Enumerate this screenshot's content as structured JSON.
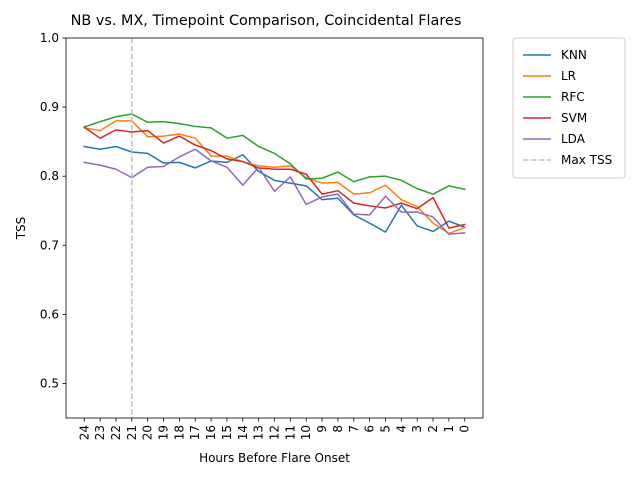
{
  "chart_data": {
    "type": "line",
    "title": "NB vs. MX, Timepoint Comparison, Coincidental Flares",
    "xlabel": "Hours Before Flare Onset",
    "ylabel": "TSS",
    "x": [
      24,
      23,
      22,
      21,
      20,
      19,
      18,
      17,
      16,
      15,
      14,
      13,
      12,
      11,
      10,
      9,
      8,
      7,
      6,
      5,
      4,
      3,
      2,
      1,
      0
    ],
    "ylim": [
      0.45,
      1.0
    ],
    "yticks": [
      0.5,
      0.6,
      0.7,
      0.8,
      0.9,
      1.0
    ],
    "ytick_labels": [
      "0.5",
      "0.6",
      "0.7",
      "0.8",
      "0.9",
      "1.0"
    ],
    "grid": false,
    "legend_position": "outside-right-top",
    "series": [
      {
        "name": "KNN",
        "color": "#1f77b4",
        "values": [
          0.843,
          0.839,
          0.843,
          0.835,
          0.833,
          0.819,
          0.82,
          0.812,
          0.822,
          0.82,
          0.831,
          0.807,
          0.794,
          0.79,
          0.786,
          0.766,
          0.768,
          0.744,
          0.732,
          0.719,
          0.758,
          0.728,
          0.72,
          0.735,
          0.726
        ]
      },
      {
        "name": "LR",
        "color": "#ff7f0e",
        "values": [
          0.87,
          0.866,
          0.88,
          0.88,
          0.857,
          0.858,
          0.861,
          0.855,
          0.829,
          0.829,
          0.821,
          0.815,
          0.813,
          0.815,
          0.798,
          0.79,
          0.791,
          0.774,
          0.776,
          0.787,
          0.766,
          0.756,
          0.732,
          0.717,
          0.726
        ]
      },
      {
        "name": "RFC",
        "color": "#2ca02c",
        "values": [
          0.871,
          0.879,
          0.886,
          0.89,
          0.878,
          0.879,
          0.876,
          0.872,
          0.87,
          0.855,
          0.859,
          0.843,
          0.833,
          0.818,
          0.796,
          0.797,
          0.806,
          0.792,
          0.799,
          0.8,
          0.794,
          0.782,
          0.774,
          0.786,
          0.781
        ]
      },
      {
        "name": "SVM",
        "color": "#d62728",
        "values": [
          0.871,
          0.855,
          0.867,
          0.864,
          0.866,
          0.848,
          0.858,
          0.845,
          0.837,
          0.825,
          0.821,
          0.812,
          0.81,
          0.81,
          0.803,
          0.774,
          0.779,
          0.761,
          0.757,
          0.754,
          0.761,
          0.753,
          0.769,
          0.725,
          0.73
        ]
      },
      {
        "name": "LDA",
        "color": "#9467bd",
        "values": [
          0.82,
          0.816,
          0.81,
          0.798,
          0.813,
          0.814,
          0.828,
          0.839,
          0.822,
          0.813,
          0.787,
          0.813,
          0.778,
          0.799,
          0.759,
          0.77,
          0.774,
          0.745,
          0.744,
          0.771,
          0.748,
          0.748,
          0.741,
          0.716,
          0.718
        ]
      }
    ],
    "annotations": [
      {
        "type": "vline",
        "x": 21,
        "label": "Max TSS",
        "color": "#bfbfbf",
        "style": "dashed"
      }
    ]
  }
}
